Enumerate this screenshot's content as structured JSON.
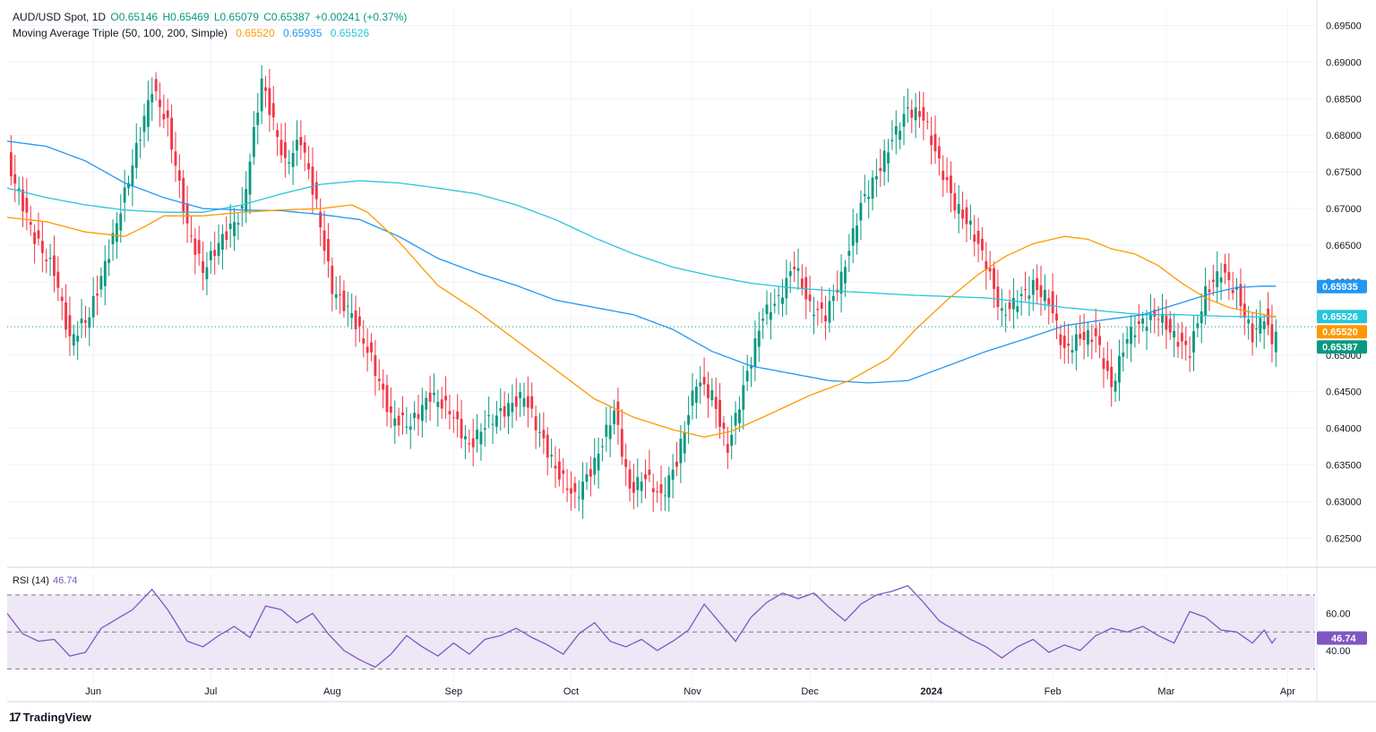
{
  "header": {
    "symbol": "AUD/USD Spot, 1D",
    "open": "O0.65146",
    "high": "H0.65469",
    "low": "L0.65079",
    "close": "C0.65387",
    "change": "+0.00241 (+0.37%)",
    "ma_label": "Moving Average Triple (50, 100, 200, Simple)",
    "ma50_value": "0.65520",
    "ma100_value": "0.65935",
    "ma200_value": "0.65526"
  },
  "rsi": {
    "label": "RSI (14)",
    "value": "46.74"
  },
  "footer": {
    "logo_text": "TradingView"
  },
  "colors": {
    "up": "#089981",
    "down": "#f23645",
    "ma50": "#ff9800",
    "ma100": "#2196f3",
    "ma200": "#26c6da",
    "rsi": "#7e57c2",
    "rsi_band": "#ede7f6",
    "grid": "#f0f3fa"
  },
  "chart_data": [
    {
      "type": "candlestick",
      "title": "AUD/USD Spot, 1D",
      "ylim": [
        0.6215,
        0.6975
      ],
      "y_ticks": [
        "0.62500",
        "0.63000",
        "0.63500",
        "0.64000",
        "0.64500",
        "0.65000",
        "0.65500",
        "0.66000",
        "0.66500",
        "0.67000",
        "0.67500",
        "0.68000",
        "0.68500",
        "0.69000",
        "0.69500"
      ],
      "x_ticks": [
        {
          "label": "Jun",
          "day": 22
        },
        {
          "label": "Jul",
          "day": 52
        },
        {
          "label": "Aug",
          "day": 83
        },
        {
          "label": "Sep",
          "day": 114
        },
        {
          "label": "Oct",
          "day": 144
        },
        {
          "label": "Nov",
          "day": 175
        },
        {
          "label": "Dec",
          "day": 205
        },
        {
          "label": "2024",
          "day": 236
        },
        {
          "label": "Feb",
          "day": 267
        },
        {
          "label": "Mar",
          "day": 296
        },
        {
          "label": "Apr",
          "day": 327
        }
      ],
      "x_range_days": [
        0,
        334
      ],
      "close_keypoints": [
        [
          0,
          0.6765
        ],
        [
          7,
          0.666
        ],
        [
          12,
          0.6615
        ],
        [
          16,
          0.652
        ],
        [
          21,
          0.6555
        ],
        [
          26,
          0.664
        ],
        [
          31,
          0.674
        ],
        [
          37,
          0.6865
        ],
        [
          41,
          0.6815
        ],
        [
          46,
          0.6675
        ],
        [
          50,
          0.6615
        ],
        [
          54,
          0.6652
        ],
        [
          60,
          0.6695
        ],
        [
          65,
          0.6875
        ],
        [
          71,
          0.676
        ],
        [
          75,
          0.6795
        ],
        [
          79,
          0.6705
        ],
        [
          83,
          0.659
        ],
        [
          88,
          0.6555
        ],
        [
          93,
          0.6495
        ],
        [
          98,
          0.6415
        ],
        [
          103,
          0.6405
        ],
        [
          108,
          0.6445
        ],
        [
          113,
          0.6425
        ],
        [
          118,
          0.6375
        ],
        [
          122,
          0.6405
        ],
        [
          127,
          0.6425
        ],
        [
          132,
          0.6445
        ],
        [
          135,
          0.6405
        ],
        [
          140,
          0.6345
        ],
        [
          145,
          0.6305
        ],
        [
          150,
          0.6352
        ],
        [
          155,
          0.6425
        ],
        [
          159,
          0.6315
        ],
        [
          163,
          0.6335
        ],
        [
          167,
          0.6305
        ],
        [
          171,
          0.6355
        ],
        [
          176,
          0.6465
        ],
        [
          180,
          0.6445
        ],
        [
          184,
          0.6372
        ],
        [
          188,
          0.6455
        ],
        [
          193,
          0.6555
        ],
        [
          197,
          0.6575
        ],
        [
          201,
          0.6625
        ],
        [
          205,
          0.6565
        ],
        [
          209,
          0.6555
        ],
        [
          213,
          0.6605
        ],
        [
          218,
          0.6705
        ],
        [
          222,
          0.6745
        ],
        [
          226,
          0.6795
        ],
        [
          230,
          0.6835
        ],
        [
          234,
          0.6825
        ],
        [
          238,
          0.6762
        ],
        [
          242,
          0.6705
        ],
        [
          246,
          0.6675
        ],
        [
          250,
          0.6625
        ],
        [
          254,
          0.6555
        ],
        [
          258,
          0.6575
        ],
        [
          262,
          0.6595
        ],
        [
          266,
          0.6575
        ],
        [
          270,
          0.6505
        ],
        [
          274,
          0.6525
        ],
        [
          278,
          0.6525
        ],
        [
          282,
          0.6455
        ],
        [
          286,
          0.6525
        ],
        [
          290,
          0.6545
        ],
        [
          294,
          0.6555
        ],
        [
          298,
          0.6525
        ],
        [
          302,
          0.6505
        ],
        [
          306,
          0.6585
        ],
        [
          310,
          0.6615
        ],
        [
          314,
          0.6585
        ],
        [
          318,
          0.6525
        ],
        [
          321,
          0.6555
        ],
        [
          323,
          0.6514
        ],
        [
          324,
          0.6539
        ]
      ],
      "ma50_keypoints": [
        [
          0,
          0.6688
        ],
        [
          10,
          0.6682
        ],
        [
          20,
          0.6668
        ],
        [
          30,
          0.6662
        ],
        [
          35,
          0.6675
        ],
        [
          40,
          0.669
        ],
        [
          50,
          0.669
        ],
        [
          60,
          0.6695
        ],
        [
          70,
          0.6698
        ],
        [
          80,
          0.67
        ],
        [
          88,
          0.6705
        ],
        [
          92,
          0.6695
        ],
        [
          100,
          0.6655
        ],
        [
          110,
          0.6595
        ],
        [
          120,
          0.656
        ],
        [
          130,
          0.652
        ],
        [
          140,
          0.648
        ],
        [
          150,
          0.644
        ],
        [
          160,
          0.6415
        ],
        [
          170,
          0.6398
        ],
        [
          178,
          0.6388
        ],
        [
          185,
          0.6396
        ],
        [
          195,
          0.642
        ],
        [
          205,
          0.6445
        ],
        [
          215,
          0.6465
        ],
        [
          225,
          0.6495
        ],
        [
          232,
          0.6535
        ],
        [
          240,
          0.6575
        ],
        [
          248,
          0.661
        ],
        [
          255,
          0.6635
        ],
        [
          262,
          0.6652
        ],
        [
          270,
          0.6662
        ],
        [
          276,
          0.6658
        ],
        [
          282,
          0.6645
        ],
        [
          288,
          0.6638
        ],
        [
          294,
          0.6622
        ],
        [
          300,
          0.6598
        ],
        [
          306,
          0.6578
        ],
        [
          312,
          0.6565
        ],
        [
          318,
          0.6558
        ],
        [
          324,
          0.6552
        ]
      ],
      "ma100_keypoints": [
        [
          0,
          0.6792
        ],
        [
          10,
          0.6785
        ],
        [
          20,
          0.6765
        ],
        [
          30,
          0.6735
        ],
        [
          40,
          0.6715
        ],
        [
          50,
          0.67
        ],
        [
          60,
          0.6698
        ],
        [
          70,
          0.6697
        ],
        [
          80,
          0.6692
        ],
        [
          90,
          0.6685
        ],
        [
          100,
          0.6662
        ],
        [
          110,
          0.6632
        ],
        [
          120,
          0.6612
        ],
        [
          130,
          0.6595
        ],
        [
          140,
          0.6575
        ],
        [
          150,
          0.6565
        ],
        [
          160,
          0.6555
        ],
        [
          170,
          0.6535
        ],
        [
          180,
          0.6505
        ],
        [
          190,
          0.6485
        ],
        [
          200,
          0.6475
        ],
        [
          210,
          0.6465
        ],
        [
          220,
          0.6462
        ],
        [
          230,
          0.6465
        ],
        [
          240,
          0.6485
        ],
        [
          250,
          0.6505
        ],
        [
          260,
          0.6522
        ],
        [
          270,
          0.654
        ],
        [
          280,
          0.6548
        ],
        [
          290,
          0.6555
        ],
        [
          296,
          0.6565
        ],
        [
          302,
          0.6575
        ],
        [
          308,
          0.6585
        ],
        [
          314,
          0.6592
        ],
        [
          320,
          0.6594
        ],
        [
          324,
          0.6594
        ]
      ],
      "ma200_keypoints": [
        [
          0,
          0.6728
        ],
        [
          10,
          0.6715
        ],
        [
          20,
          0.6705
        ],
        [
          30,
          0.6698
        ],
        [
          40,
          0.6695
        ],
        [
          50,
          0.6695
        ],
        [
          60,
          0.6705
        ],
        [
          70,
          0.672
        ],
        [
          80,
          0.6733
        ],
        [
          90,
          0.6738
        ],
        [
          100,
          0.6735
        ],
        [
          110,
          0.6728
        ],
        [
          120,
          0.672
        ],
        [
          130,
          0.6705
        ],
        [
          140,
          0.6685
        ],
        [
          150,
          0.666
        ],
        [
          160,
          0.6638
        ],
        [
          170,
          0.662
        ],
        [
          180,
          0.6608
        ],
        [
          190,
          0.6598
        ],
        [
          200,
          0.6592
        ],
        [
          210,
          0.6588
        ],
        [
          220,
          0.6585
        ],
        [
          230,
          0.6582
        ],
        [
          240,
          0.658
        ],
        [
          250,
          0.6578
        ],
        [
          260,
          0.6572
        ],
        [
          270,
          0.6565
        ],
        [
          280,
          0.656
        ],
        [
          290,
          0.6555
        ],
        [
          300,
          0.6555
        ],
        [
          310,
          0.6553
        ],
        [
          320,
          0.6552
        ],
        [
          324,
          0.6553
        ]
      ],
      "badges": [
        {
          "label": "0.65935",
          "value": 0.65935,
          "color": "#2196f3"
        },
        {
          "label": "0.65526",
          "value": 0.65526,
          "color": "#26c6da"
        },
        {
          "label": "0.65520",
          "value": 0.6552,
          "color": "#ff9800"
        },
        {
          "label": "0.65387",
          "value": 0.65387,
          "color": "#089981"
        }
      ],
      "last_close": 0.65387
    },
    {
      "type": "line",
      "title": "RSI (14)",
      "ylim": [
        24,
        82
      ],
      "band": [
        30,
        70
      ],
      "midline": 50,
      "y_ticks": [
        "40.00",
        "60.00"
      ],
      "rsi_keypoints": [
        [
          0,
          60
        ],
        [
          4,
          49
        ],
        [
          8,
          45
        ],
        [
          12,
          46
        ],
        [
          16,
          37
        ],
        [
          20,
          39
        ],
        [
          24,
          52
        ],
        [
          28,
          57
        ],
        [
          32,
          62
        ],
        [
          37,
          73
        ],
        [
          41,
          62
        ],
        [
          46,
          45
        ],
        [
          50,
          42
        ],
        [
          54,
          48
        ],
        [
          58,
          53
        ],
        [
          62,
          47
        ],
        [
          66,
          64
        ],
        [
          70,
          62
        ],
        [
          74,
          55
        ],
        [
          78,
          60
        ],
        [
          82,
          49
        ],
        [
          86,
          40
        ],
        [
          90,
          35
        ],
        [
          94,
          31
        ],
        [
          98,
          38
        ],
        [
          102,
          48
        ],
        [
          106,
          42
        ],
        [
          110,
          37
        ],
        [
          114,
          44
        ],
        [
          118,
          38
        ],
        [
          122,
          46
        ],
        [
          126,
          48
        ],
        [
          130,
          52
        ],
        [
          134,
          47
        ],
        [
          138,
          43
        ],
        [
          142,
          38
        ],
        [
          146,
          49
        ],
        [
          150,
          55
        ],
        [
          154,
          45
        ],
        [
          158,
          42
        ],
        [
          162,
          46
        ],
        [
          166,
          40
        ],
        [
          170,
          45
        ],
        [
          174,
          51
        ],
        [
          178,
          65
        ],
        [
          182,
          55
        ],
        [
          186,
          45
        ],
        [
          190,
          58
        ],
        [
          194,
          66
        ],
        [
          198,
          71
        ],
        [
          202,
          68
        ],
        [
          206,
          71
        ],
        [
          210,
          63
        ],
        [
          214,
          56
        ],
        [
          218,
          65
        ],
        [
          222,
          70
        ],
        [
          226,
          72
        ],
        [
          230,
          75
        ],
        [
          234,
          66
        ],
        [
          238,
          56
        ],
        [
          242,
          51
        ],
        [
          246,
          46
        ],
        [
          250,
          42
        ],
        [
          254,
          36
        ],
        [
          258,
          42
        ],
        [
          262,
          46
        ],
        [
          266,
          39
        ],
        [
          270,
          43
        ],
        [
          274,
          40
        ],
        [
          278,
          48
        ],
        [
          282,
          52
        ],
        [
          286,
          50
        ],
        [
          290,
          53
        ],
        [
          294,
          48
        ],
        [
          298,
          44
        ],
        [
          302,
          61
        ],
        [
          306,
          58
        ],
        [
          310,
          51
        ],
        [
          314,
          50
        ],
        [
          318,
          44
        ],
        [
          321,
          51
        ],
        [
          323,
          44
        ],
        [
          324,
          46.74
        ]
      ],
      "badge": {
        "label": "46.74",
        "value": 46.74,
        "color": "#7e57c2"
      }
    }
  ]
}
